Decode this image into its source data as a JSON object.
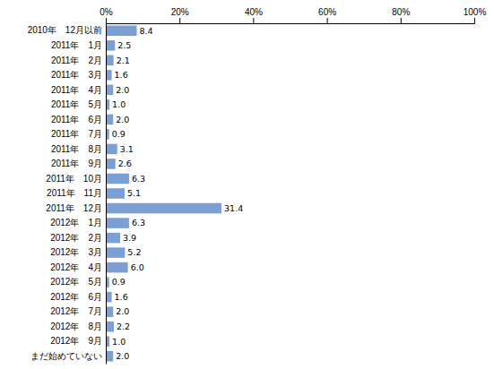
{
  "chart_data": {
    "type": "bar",
    "orientation": "horizontal",
    "categories": [
      "2010年　12月以前",
      "　2011年　1月",
      "　2011年　2月",
      "　2011年　3月",
      "　2011年　4月",
      "　2011年　5月",
      "　2011年　6月",
      "　2011年　7月",
      "　2011年　8月",
      "　2011年　9月",
      "　2011年　10月",
      "　2011年　11月",
      "　2011年　12月",
      "　2012年　1月",
      "　2012年　2月",
      "　2012年　3月",
      "　2012年　4月",
      "　2012年　5月",
      "　2012年　6月",
      "　2012年　7月",
      "　2012年　8月",
      "　2012年　9月",
      "まだ始めていない"
    ],
    "values": [
      8.4,
      2.5,
      2.1,
      1.6,
      2.0,
      1.0,
      2.0,
      0.9,
      3.1,
      2.6,
      6.3,
      5.1,
      31.4,
      6.3,
      3.9,
      5.2,
      6.0,
      0.9,
      1.6,
      2.0,
      2.2,
      1.0,
      2.0
    ],
    "value_labels": [
      "8.4",
      "2.5",
      "2.1",
      "1.6",
      "2.0",
      "1.0",
      "2.0",
      "0.9",
      "3.1",
      "2.6",
      "6.3",
      "5.1",
      "31.4",
      "6.3",
      "3.9",
      "5.2",
      "6.0",
      "0.9",
      "1.6",
      "2.0",
      "2.2",
      "1.0",
      "2.0"
    ],
    "data_labels": true,
    "color": "#7b9fd4",
    "xlim": [
      0,
      100
    ],
    "xticks": [
      {
        "value": 0,
        "label": "0%"
      },
      {
        "value": 20,
        "label": "20%"
      },
      {
        "value": 40,
        "label": "40%"
      },
      {
        "value": 60,
        "label": "60%"
      },
      {
        "value": 80,
        "label": "80%"
      },
      {
        "value": 100,
        "label": "100%"
      }
    ],
    "grid": false
  }
}
